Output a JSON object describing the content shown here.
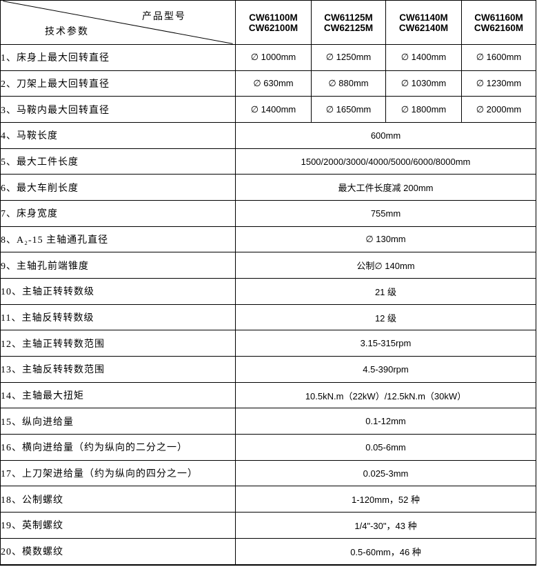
{
  "table": {
    "colors": {
      "border": "#000000",
      "background": "#ffffff",
      "text": "#000000"
    },
    "corner": {
      "top_label": "产品型号",
      "bottom_label": "技术参数"
    },
    "models": [
      {
        "line1": "CW61100M",
        "line2": "CW62100M"
      },
      {
        "line1": "CW61125M",
        "line2": "CW62125M"
      },
      {
        "line1": "CW61140M",
        "line2": "CW62140M"
      },
      {
        "line1": "CW61160M",
        "line2": "CW62160M"
      }
    ],
    "rows": [
      {
        "label": "1、床身上最大回转直径",
        "values": [
          "∅ 1000mm",
          "∅ 1250mm",
          "∅ 1400mm",
          "∅ 1600mm"
        ]
      },
      {
        "label": "2、刀架上最大回转直径",
        "values": [
          "∅ 630mm",
          "∅ 880mm",
          "∅ 1030mm",
          "∅ 1230mm"
        ]
      },
      {
        "label": "3、马鞍内最大回转直径",
        "values": [
          "∅ 1400mm",
          "∅ 1650mm",
          "∅ 1800mm",
          "∅ 2000mm"
        ]
      },
      {
        "label": "4、马鞍长度",
        "values": [
          "600mm"
        ]
      },
      {
        "label": "5、最大工件长度",
        "values": [
          "1500/2000/3000/4000/5000/6000/8000mm"
        ]
      },
      {
        "label": "6、最大车削长度",
        "values": [
          "最大工件长度减 200mm"
        ]
      },
      {
        "label": "7、床身宽度",
        "values": [
          "755mm"
        ]
      },
      {
        "label": "8、A₂-15 主轴通孔直径",
        "values": [
          "∅ 130mm"
        ]
      },
      {
        "label": "9、主轴孔前端锥度",
        "values": [
          "公制∅ 140mm"
        ]
      },
      {
        "label": "10、主轴正转转数级",
        "values": [
          "21 级"
        ]
      },
      {
        "label": "11、主轴反转转数级",
        "values": [
          "12 级"
        ]
      },
      {
        "label": "12、主轴正转转数范围",
        "values": [
          "3.15-315rpm"
        ]
      },
      {
        "label": "13、主轴反转转数范围",
        "values": [
          "4.5-390rpm"
        ]
      },
      {
        "label": "14、主轴最大扭矩",
        "values": [
          "10.5kN.m（22kW）/12.5kN.m（30kW）"
        ]
      },
      {
        "label": "15、纵向进给量",
        "values": [
          "0.1-12mm"
        ]
      },
      {
        "label": "16、横向进给量（约为纵向的二分之一）",
        "values": [
          "0.05-6mm"
        ]
      },
      {
        "label": "17、上刀架进给量（约为纵向的四分之一）",
        "values": [
          "0.025-3mm"
        ]
      },
      {
        "label": "18、公制螺纹",
        "values": [
          "1-120mm，52 种"
        ]
      },
      {
        "label": "19、英制螺纹",
        "values": [
          "1/4\"-30\"，43 种"
        ]
      },
      {
        "label": "20、模数螺纹",
        "values": [
          "0.5-60mm，46 种"
        ]
      }
    ]
  }
}
